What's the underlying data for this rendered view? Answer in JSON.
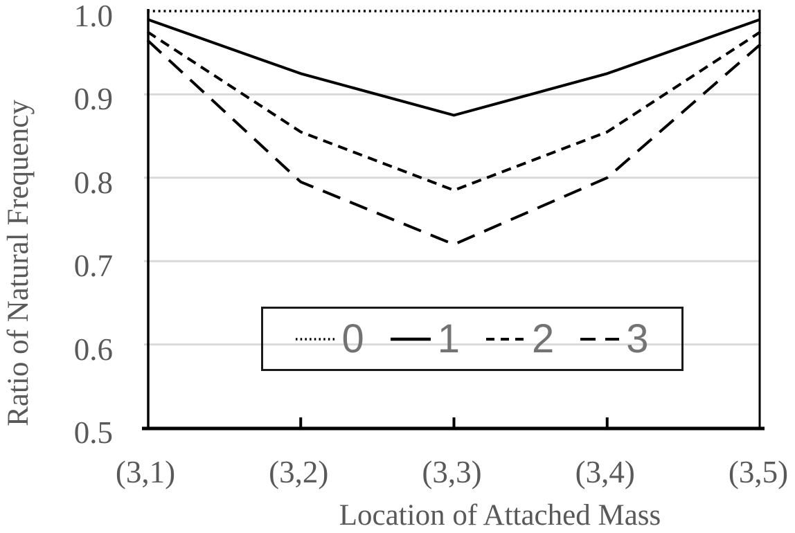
{
  "figure": {
    "background": "#ffffff"
  },
  "chart_data": {
    "type": "line",
    "title": "",
    "xlabel": "Location of Attached Mass",
    "ylabel": "Ratio of Natural Frequency",
    "categories": [
      "(3,1)",
      "(3,2)",
      "(3,3)",
      "(3,4)",
      "(3,5)"
    ],
    "series": [
      {
        "name": "0",
        "style": "dotted",
        "values": [
          1.0,
          1.0,
          1.0,
          1.0,
          1.0
        ]
      },
      {
        "name": "1",
        "style": "solid",
        "values": [
          0.99,
          0.925,
          0.875,
          0.925,
          0.99
        ]
      },
      {
        "name": "2",
        "style": "short-dash",
        "values": [
          0.975,
          0.855,
          0.785,
          0.855,
          0.975
        ]
      },
      {
        "name": "3",
        "style": "long-dash",
        "values": [
          0.965,
          0.795,
          0.72,
          0.8,
          0.96
        ]
      }
    ],
    "ylim": [
      0.5,
      1.0
    ],
    "y_tick_labels": [
      "1.0",
      "0.9",
      "0.8",
      "0.7",
      "0.6",
      "0.5"
    ],
    "y_tick_values": [
      1.0,
      0.9,
      0.8,
      0.7,
      0.6,
      0.5
    ],
    "gridlines": [
      0.9,
      0.8,
      0.7,
      0.6
    ],
    "grid": "horizontal-light",
    "legend_position": "inside-bottom-center",
    "legend_labels": [
      "0",
      "1",
      "2",
      "3"
    ],
    "colors": {
      "line": "#000000",
      "axis": "#000000",
      "grid": "#d9d9d9",
      "tick_text": "#595959",
      "legend_text": "#737373"
    }
  }
}
